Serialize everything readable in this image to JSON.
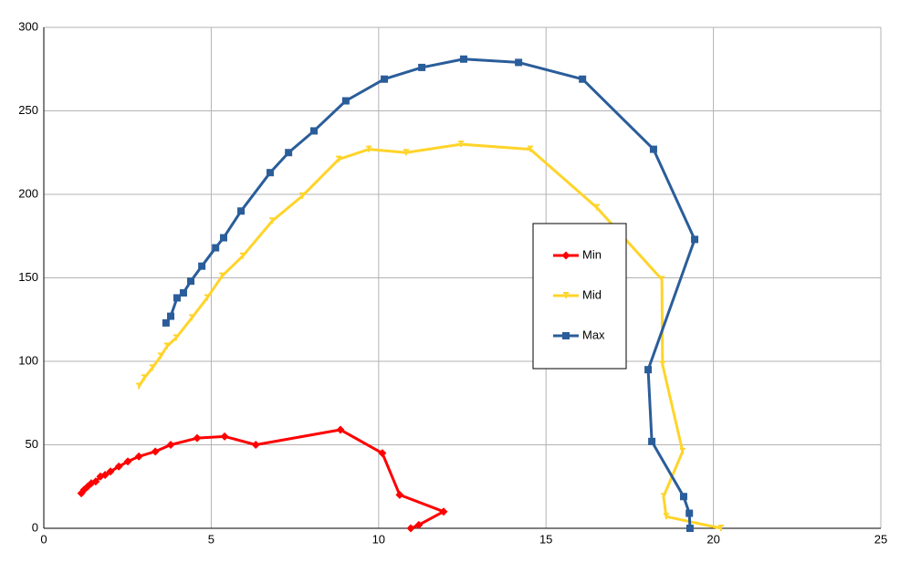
{
  "chart_data": {
    "type": "scatter",
    "grid": true,
    "legend": "right",
    "xlim": [
      0,
      25
    ],
    "xticks": [
      0,
      5,
      10,
      15,
      20,
      25
    ],
    "ylim": [
      0,
      300
    ],
    "yticks": [
      0,
      50,
      100,
      150,
      200,
      250,
      300
    ],
    "series": [
      {
        "name": "Min",
        "color": "#ff0000",
        "marker": "diamond",
        "x": [
          1.12,
          1.2,
          1.31,
          1.42,
          1.55,
          1.69,
          1.83,
          1.99,
          2.24,
          2.51,
          2.84,
          3.33,
          3.79,
          4.58,
          5.4,
          6.33,
          8.86,
          10.11,
          10.63,
          11.94,
          11.2,
          10.96
        ],
        "values": [
          21,
          23,
          25,
          27,
          28,
          31,
          32,
          34,
          37,
          40,
          43,
          46,
          50,
          54,
          55,
          50,
          59,
          45,
          20,
          10,
          2,
          0
        ]
      },
      {
        "name": "Mid",
        "color": "#ffd42a",
        "marker": "tick",
        "x": [
          2.84,
          3.0,
          3.24,
          3.49,
          3.68,
          3.95,
          4.42,
          4.88,
          5.32,
          5.94,
          6.82,
          7.72,
          8.81,
          9.71,
          10.82,
          12.46,
          14.53,
          16.52,
          18.46,
          18.48,
          19.08,
          18.51,
          18.59,
          20.23
        ],
        "values": [
          85,
          90,
          96,
          103,
          109,
          114,
          126,
          138,
          151,
          163,
          184,
          199,
          221,
          227,
          225,
          230,
          227,
          192,
          149,
          98,
          46,
          19,
          7,
          0
        ]
      },
      {
        "name": "Max",
        "color": "#2a5d9a",
        "marker": "square",
        "x": [
          3.65,
          3.79,
          3.98,
          4.17,
          4.39,
          4.72,
          5.13,
          5.37,
          5.89,
          6.76,
          7.31,
          8.07,
          9.02,
          10.17,
          11.29,
          12.54,
          14.18,
          16.09,
          18.21,
          19.44,
          18.05,
          18.16,
          19.11,
          19.28,
          19.3
        ],
        "values": [
          123,
          127,
          138,
          141,
          148,
          157,
          168,
          174,
          190,
          213,
          225,
          238,
          256,
          269,
          276,
          281,
          279,
          269,
          227,
          173,
          95,
          52,
          19,
          9,
          0
        ]
      }
    ]
  }
}
